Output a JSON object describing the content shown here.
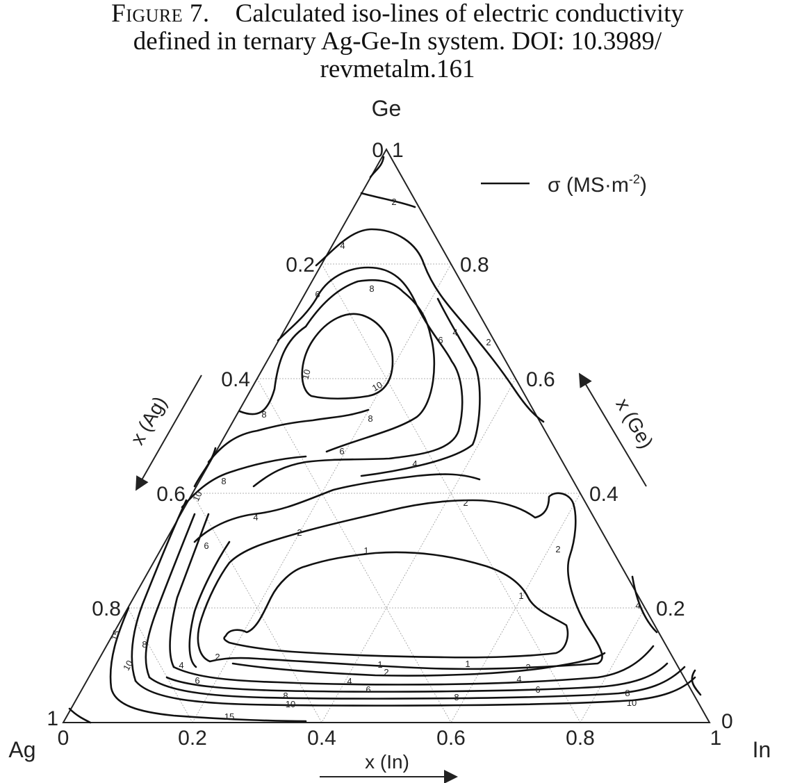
{
  "caption": {
    "label": "Figure 7.",
    "line1": "Calculated iso-lines of electric conductivity",
    "line2": "defined in ternary Ag-Ge-In system. DOI: 10.3989/",
    "line3": "revmetalm.161"
  },
  "vertices": {
    "top": "Ge",
    "left": "Ag",
    "right": "In"
  },
  "axes": {
    "bottom": {
      "title": "x (In)",
      "ticks": [
        "0",
        "0.2",
        "0.4",
        "0.6",
        "0.8",
        "1"
      ]
    },
    "left": {
      "title": "x (Ag)",
      "ticks": [
        "0",
        "0.2",
        "0.4",
        "0.6",
        "0.8",
        "1"
      ]
    },
    "right": {
      "title": "x (Ge)",
      "ticks": [
        "1",
        "0.8",
        "0.6",
        "0.4",
        "0.2",
        "0"
      ]
    }
  },
  "legend": {
    "label": "σ (MS·m",
    "superscript": "-2",
    "close": ")"
  },
  "iso_labels": {
    "l2_top": "2",
    "l4_top": "4",
    "l6_top": "6",
    "l8_top": "8",
    "l10a": "10",
    "l10b": "10",
    "l8_mid": "8",
    "l6_mid": "6",
    "l4_mid": "4",
    "l4_right": "4",
    "l6_right": "6",
    "l2_right": "2",
    "l8_left": "8",
    "l10_left": "10",
    "l6_left": "6",
    "l4_left": "4",
    "l2_left": "2",
    "l2_center": "2",
    "l2_rt": "2",
    "l1_center": "1",
    "l1_right": "1",
    "l15_left": "15",
    "l8_bl": "8",
    "l10_bl": "10",
    "l4_bot": "4",
    "l6_bot": "6",
    "l2_bot": "2",
    "l1_b1": "1",
    "l2_b1": "2",
    "l4_b1": "4",
    "l6_b1": "6",
    "l8_b1": "8",
    "l10_b1": "10",
    "l1_b2": "1",
    "l2_b2": "2",
    "l4_b2": "4",
    "l6_b2": "6",
    "l8_b2": "8",
    "l10_b2": "10",
    "l15_bot": "15",
    "l4_rr": "4"
  }
}
